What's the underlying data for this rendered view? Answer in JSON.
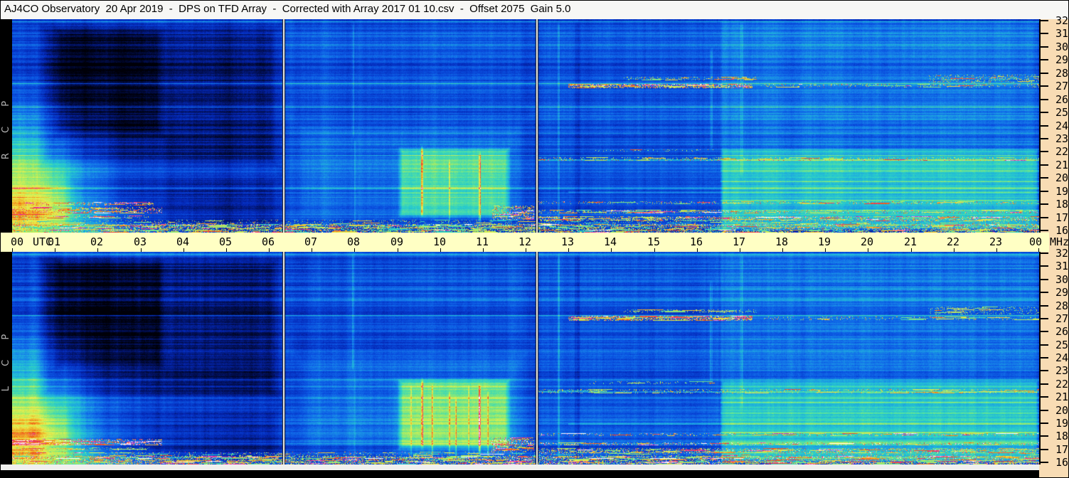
{
  "window": {
    "title": "AJ4CO Observatory  20 Apr 2019  -  DPS on TFD Array  -  Corrected with Array 2017 01 10.csv  -  Offset 2075  Gain 5.0"
  },
  "panels": [
    {
      "label": "R C P"
    },
    {
      "label": "L C P"
    }
  ],
  "time_axis": {
    "utc_label": "UTC",
    "mhz_label": "MHz",
    "hour_labels": [
      "00",
      "01",
      "02",
      "03",
      "04",
      "05",
      "06",
      "07",
      "08",
      "09",
      "10",
      "11",
      "12",
      "13",
      "14",
      "15",
      "16",
      "17",
      "18",
      "19",
      "20",
      "21",
      "22",
      "23",
      "00"
    ]
  },
  "freq_axis": {
    "tick_values": [
      32,
      31,
      30,
      29,
      28,
      27,
      26,
      25,
      24,
      23,
      22,
      21,
      20,
      19,
      18,
      17,
      16
    ]
  },
  "colors": {
    "title_bg": "#f7f7f5",
    "time_band_bg": "#ffffc4",
    "freq_band_bg": "#f8dcb4",
    "label_column_bg": "#000000",
    "pol_label_text": "#b4b4b4",
    "axis_text": "#000000"
  },
  "chart_data": {
    "type": "heatmap",
    "subtype": "radio-dynamic-spectrum",
    "title": "AJ4CO Observatory DPS on TFD Array, 20 Apr 2019",
    "x_axis": {
      "label": "UTC",
      "unit": "hours",
      "start": 0,
      "end": 24,
      "tick_step": 1
    },
    "y_axis": {
      "label": "MHz",
      "min": 16,
      "max": 32,
      "tick_step": 1,
      "direction": "top-is-32"
    },
    "panels": [
      {
        "id": "RCP",
        "label": "R C P",
        "meaning": "right circular polarization",
        "seed": 7
      },
      {
        "id": "LCP",
        "label": "L C P",
        "meaning": "left circular polarization",
        "seed": 13
      }
    ],
    "offset": 2075,
    "gain": 5.0,
    "data_gaps_utc": [
      "06:20",
      "12:15"
    ],
    "notable_features": [
      "White vertical data-gap lines at ~06:20 and ~12:15 UTC in both panels",
      "Very dark low-signal region 00:40-06:20 UTC, darkest 01:00-03:30 above 23 MHz",
      "Bright cyan-green enhancement at 00:00-01:30 UTC below ~22 MHz (lower-left of both panels)",
      "Pale yellow-green emission patch 09:00-11:40 UTC between ~17 and 22.4 MHz with vertical striations",
      "Strong speckled RFI burst near 27 MHz from ~13:00 to ~17:20 UTC (yellow/orange/magenta/white)",
      "Background steps brighter after ~16:33 UTC; banded cyan/green below ~22 MHz to end of day",
      "Persistent colorful RFI rows 16-18.3 MHz across the whole day; magenta/white streaks near 17.5 MHz 00:00-03:30",
      "Thin horizontal interference lines near 25.5, 27.2 and 30.9 MHz across the full record"
    ],
    "base_value": 0.27,
    "colormap": [
      {
        "v": 0.0,
        "c": "#000008"
      },
      {
        "v": 0.1,
        "c": "#02105a"
      },
      {
        "v": 0.2,
        "c": "#0428b8"
      },
      {
        "v": 0.3,
        "c": "#0a50e0"
      },
      {
        "v": 0.38,
        "c": "#1478ea"
      },
      {
        "v": 0.46,
        "c": "#1ea8e0"
      },
      {
        "v": 0.54,
        "c": "#28cccc"
      },
      {
        "v": 0.62,
        "c": "#55e0a0"
      },
      {
        "v": 0.7,
        "c": "#a5ec64"
      },
      {
        "v": 0.78,
        "c": "#e8f050"
      },
      {
        "v": 0.85,
        "c": "#f0b428"
      },
      {
        "v": 0.9,
        "c": "#f05014"
      },
      {
        "v": 0.95,
        "c": "#e628b4"
      },
      {
        "v": 1.0,
        "c": "#ffffff"
      }
    ],
    "features_common": [
      {
        "type": "rect",
        "t0": 0.55,
        "t1": 6.35,
        "f0": 20.5,
        "f1": 32,
        "amount": -0.13,
        "soft": 20
      },
      {
        "type": "rect",
        "t0": 0.95,
        "t1": 3.6,
        "f0": 23,
        "f1": 31.6,
        "amount": -0.1,
        "soft": 14
      },
      {
        "type": "rect",
        "t0": 1.2,
        "t1": 6.35,
        "f0": 16,
        "f1": 20.5,
        "amount": -0.08,
        "soft": 18
      },
      {
        "type": "glow",
        "t": 0.25,
        "f": 19.8,
        "st": 1.1,
        "sf": 3.2,
        "amount": 0.42
      },
      {
        "type": "glow",
        "t": 0.1,
        "f": 16.6,
        "st": 1.6,
        "sf": 1.7,
        "amount": 0.32
      },
      {
        "type": "rect",
        "t0": 6.37,
        "t1": 12.22,
        "f0": 16,
        "f1": 25,
        "amount": 0.1,
        "soft": 30
      },
      {
        "type": "rect",
        "t0": 6.37,
        "t1": 12.22,
        "f0": 25,
        "f1": 32,
        "amount": 0.04,
        "soft": 20
      },
      {
        "type": "rect",
        "t0": 9.0,
        "t1": 11.65,
        "f0": 16.9,
        "f1": 22.4,
        "amount": 0.24,
        "soft": 8
      },
      {
        "type": "rect",
        "t0": 12.27,
        "t1": 24,
        "f0": 16,
        "f1": 32,
        "amount": 0.05,
        "soft": 10
      },
      {
        "type": "rect",
        "t0": 16.55,
        "t1": 24,
        "f0": 16,
        "f1": 32,
        "amount": 0.06,
        "soft": 3
      },
      {
        "type": "rect",
        "t0": 16.55,
        "t1": 24,
        "f0": 16,
        "f1": 22.3,
        "amount": 0.15,
        "soft": 5
      },
      {
        "type": "hline",
        "f": 31.95,
        "t0": 0,
        "t1": 24,
        "amount": 0.1,
        "w": 2
      },
      {
        "type": "hline",
        "f": 30.85,
        "t0": 0,
        "t1": 24,
        "amount": 0.09,
        "w": 1
      },
      {
        "type": "hline",
        "f": 27.25,
        "t0": 0,
        "t1": 24,
        "amount": 0.2,
        "w": 1
      },
      {
        "type": "hline",
        "f": 25.45,
        "t0": 0,
        "t1": 24,
        "amount": 0.12,
        "w": 1
      },
      {
        "type": "hline",
        "f": 23.05,
        "t0": 0,
        "t1": 24,
        "amount": 0.07,
        "w": 1
      },
      {
        "type": "hline",
        "f": 21.45,
        "t0": 12.3,
        "t1": 24,
        "amount": 0.14,
        "w": 2
      },
      {
        "type": "hline",
        "f": 20.6,
        "t0": 16.55,
        "t1": 24,
        "amount": 0.1,
        "w": 2
      },
      {
        "type": "hline",
        "f": 19.8,
        "t0": 16.55,
        "t1": 24,
        "amount": 0.12,
        "w": 2
      },
      {
        "type": "hline",
        "f": 19.0,
        "t0": 13.0,
        "t1": 24,
        "amount": 0.1,
        "w": 2
      },
      {
        "type": "hline",
        "f": 18.35,
        "t0": 16.55,
        "t1": 24,
        "amount": 0.12,
        "w": 2
      },
      {
        "type": "hline",
        "f": 17.6,
        "t0": 16.55,
        "t1": 24,
        "amount": 0.1,
        "w": 2
      },
      {
        "type": "vstreak",
        "t": 7.95,
        "f0": 23,
        "f1": 32,
        "amount": 0.09,
        "w": 3
      },
      {
        "type": "vstreak",
        "t": 8.0,
        "f0": 16,
        "f1": 23,
        "amount": 0.07,
        "w": 2
      },
      {
        "type": "vstreak",
        "t": 9.55,
        "f0": 17,
        "f1": 22.5,
        "amount": 0.26,
        "w": 3
      },
      {
        "type": "vstreak",
        "t": 10.2,
        "f0": 16.5,
        "f1": 21.5,
        "amount": 0.12,
        "w": 2
      },
      {
        "type": "vstreak",
        "t": 10.9,
        "f0": 16.5,
        "f1": 22,
        "amount": 0.22,
        "w": 3
      },
      {
        "type": "vstreak",
        "t": 12.75,
        "f0": 16,
        "f1": 32,
        "amount": 0.12,
        "w": 3
      },
      {
        "type": "vstreak",
        "t": 13.15,
        "f0": 16,
        "f1": 32,
        "amount": -0.05,
        "w": 8
      },
      {
        "type": "vstreak",
        "t": 16.3,
        "f0": 22,
        "f1": 30,
        "amount": 0.08,
        "w": 4
      },
      {
        "type": "vstreak",
        "t": 17.0,
        "f0": 20,
        "f1": 32,
        "amount": 0.06,
        "w": 5
      },
      {
        "type": "rfi",
        "t0": 0,
        "t1": 24,
        "f0": 15.8,
        "f1": 16.5,
        "density": 0.4,
        "vmin": 0.55,
        "vmax": 1.0
      },
      {
        "type": "rfi",
        "t0": 0,
        "t1": 24,
        "f0": 16.5,
        "f1": 16.8,
        "density": 0.12,
        "vmin": 0.5,
        "vmax": 0.95
      },
      {
        "type": "rfi",
        "t0": 0,
        "t1": 3.5,
        "f0": 17.3,
        "f1": 17.8,
        "density": 0.28,
        "vmin": 0.8,
        "vmax": 1.0
      },
      {
        "type": "rfi",
        "t0": 0,
        "t1": 3.2,
        "f0": 16.9,
        "f1": 17.15,
        "density": 0.2,
        "vmin": 0.6,
        "vmax": 1.0
      },
      {
        "type": "rfi",
        "t0": 11.2,
        "t1": 12.2,
        "f0": 16.8,
        "f1": 17.9,
        "density": 0.3,
        "vmin": 0.7,
        "vmax": 1.0
      },
      {
        "type": "rfi",
        "t0": 12.3,
        "t1": 24,
        "f0": 16.7,
        "f1": 17.1,
        "density": 0.28,
        "vmin": 0.65,
        "vmax": 1.0
      },
      {
        "type": "rfi",
        "t0": 12.3,
        "t1": 24,
        "f0": 17.3,
        "f1": 17.55,
        "density": 0.22,
        "vmin": 0.6,
        "vmax": 1.0
      },
      {
        "type": "rfi",
        "t0": 12.3,
        "t1": 24,
        "f0": 18.0,
        "f1": 18.25,
        "density": 0.16,
        "vmin": 0.6,
        "vmax": 0.98
      },
      {
        "type": "rfi",
        "t0": 12.3,
        "t1": 24,
        "f0": 21.3,
        "f1": 21.6,
        "density": 0.18,
        "vmin": 0.6,
        "vmax": 0.92
      },
      {
        "type": "rfi",
        "t0": 13.0,
        "t1": 17.3,
        "f0": 26.85,
        "f1": 27.2,
        "density": 0.45,
        "vmin": 0.72,
        "vmax": 1.0
      },
      {
        "type": "rfi",
        "t0": 14.3,
        "t1": 17.4,
        "f0": 27.45,
        "f1": 27.7,
        "density": 0.18,
        "vmin": 0.6,
        "vmax": 0.92
      },
      {
        "type": "rfi",
        "t0": 17.5,
        "t1": 24,
        "f0": 26.9,
        "f1": 27.15,
        "density": 0.12,
        "vmin": 0.6,
        "vmax": 0.95
      },
      {
        "type": "rfi",
        "t0": 21.4,
        "t1": 24,
        "f0": 27.3,
        "f1": 27.9,
        "density": 0.15,
        "vmin": 0.6,
        "vmax": 0.92
      },
      {
        "type": "rfi",
        "t0": 13.5,
        "t1": 16.5,
        "f0": 22.0,
        "f1": 22.2,
        "density": 0.1,
        "vmin": 0.6,
        "vmax": 0.9
      },
      {
        "type": "gap",
        "t": 6.33
      },
      {
        "type": "gap",
        "t": 12.25
      }
    ],
    "features_rcp": [
      {
        "type": "rfi",
        "t0": 0.3,
        "t1": 3.3,
        "f0": 17.9,
        "f1": 18.15,
        "density": 0.25,
        "vmin": 0.75,
        "vmax": 1.0
      }
    ],
    "features_lcp": [
      {
        "type": "rect",
        "t0": 8.9,
        "t1": 11.7,
        "f0": 16.2,
        "f1": 22.6,
        "amount": 0.06,
        "soft": 10
      },
      {
        "type": "vstreak",
        "t": 9.3,
        "f0": 16,
        "f1": 22,
        "amount": 0.14,
        "w": 2
      },
      {
        "type": "vstreak",
        "t": 9.8,
        "f0": 16,
        "f1": 22,
        "amount": 0.12,
        "w": 2
      },
      {
        "type": "vstreak",
        "t": 10.35,
        "f0": 16,
        "f1": 21,
        "amount": 0.14,
        "w": 2
      },
      {
        "type": "vstreak",
        "t": 10.65,
        "f0": 16,
        "f1": 22,
        "amount": 0.12,
        "w": 2
      },
      {
        "type": "vstreak",
        "t": 11.1,
        "f0": 16,
        "f1": 21.5,
        "amount": 0.12,
        "w": 2
      }
    ]
  }
}
